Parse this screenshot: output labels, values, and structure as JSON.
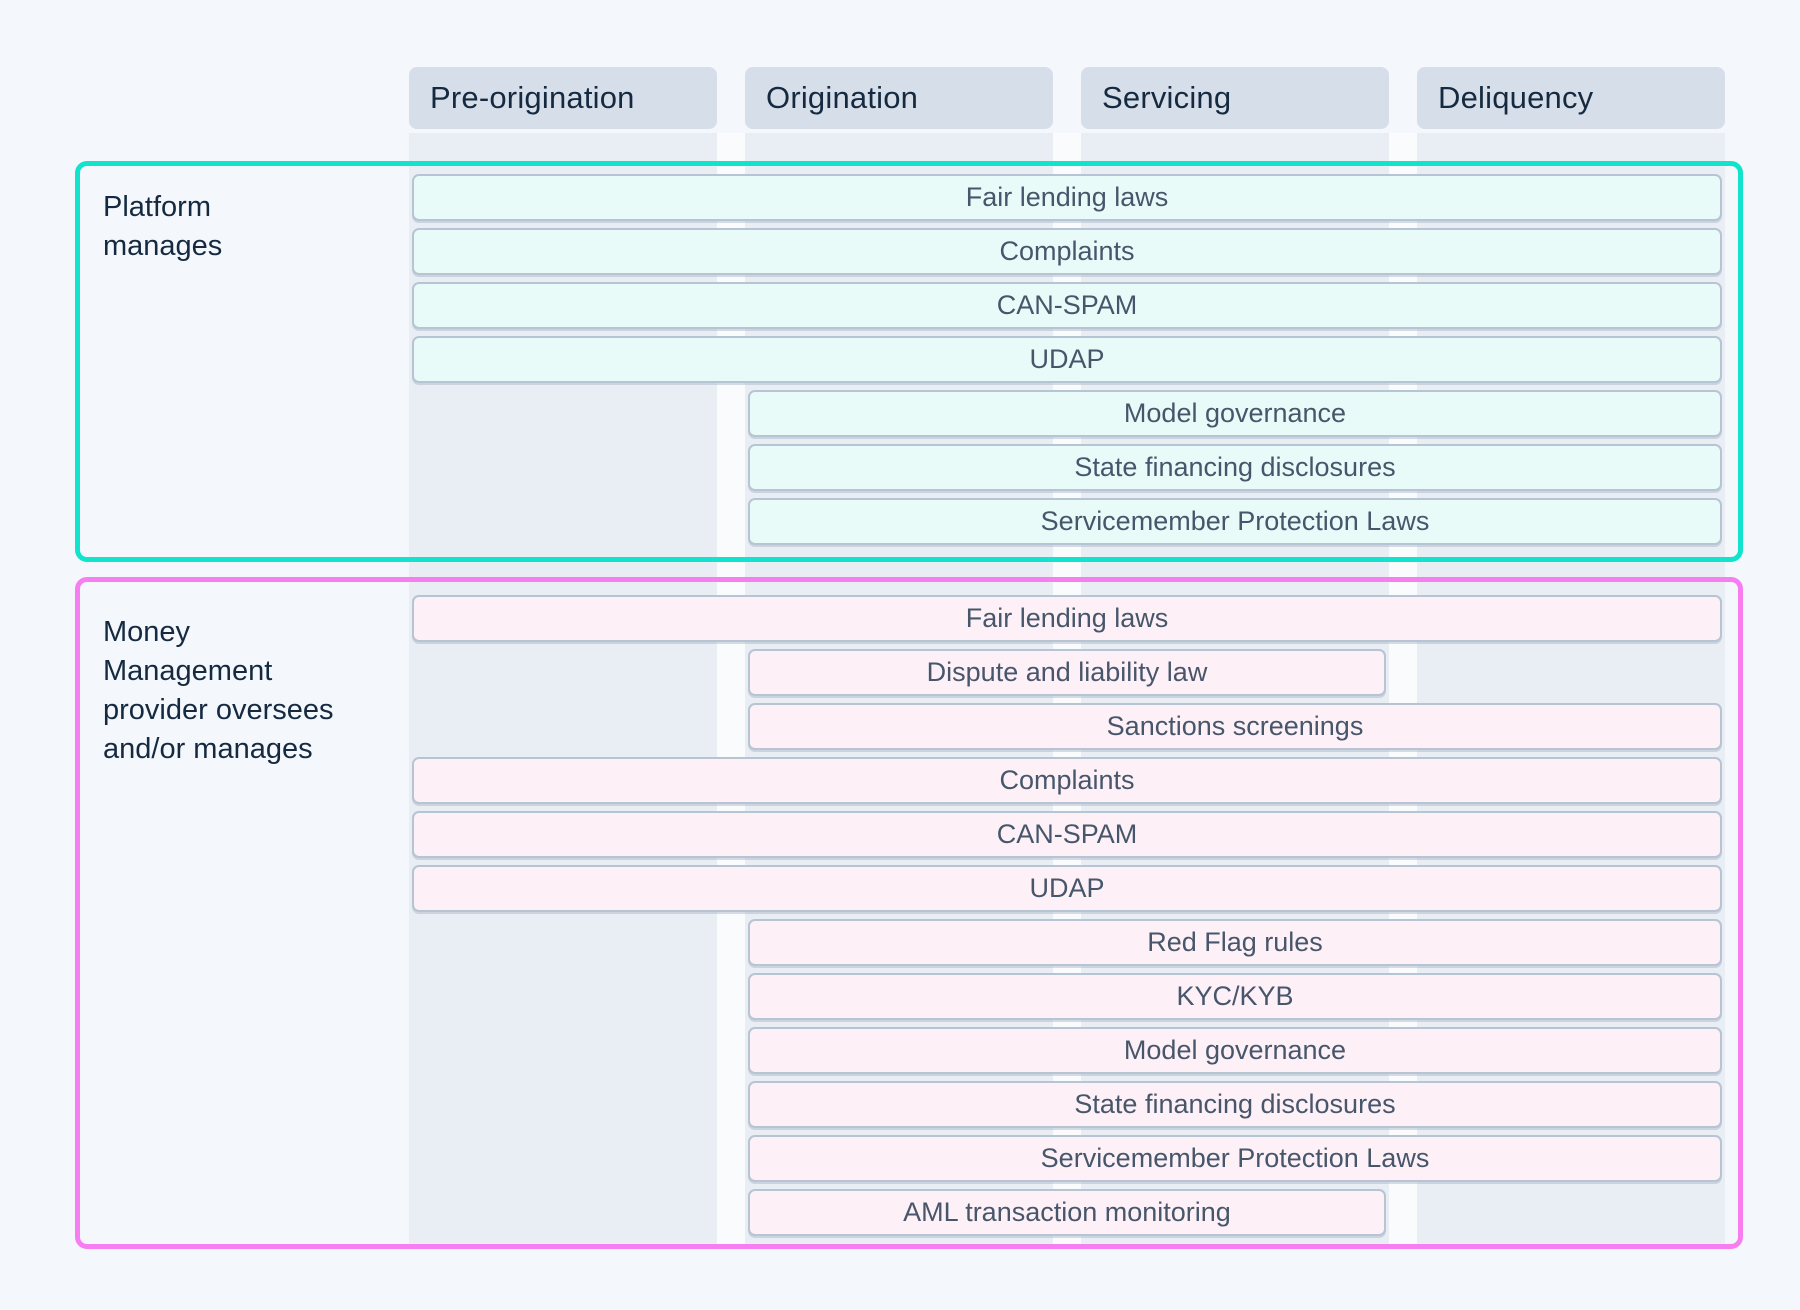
{
  "page": {
    "background": "#f4f7fb"
  },
  "columns": [
    {
      "id": "pre-origination",
      "label": "Pre-origination"
    },
    {
      "id": "origination",
      "label": "Origination"
    },
    {
      "id": "servicing",
      "label": "Servicing"
    },
    {
      "id": "deliquency",
      "label": "Deliquency"
    }
  ],
  "sections": [
    {
      "id": "platform-manages",
      "label": "Platform\nmanages",
      "accent_color": "#12e3cc",
      "bar_fill": "#e8fbf9",
      "rows": [
        {
          "label": "Fair lending laws",
          "span": [
            0,
            3
          ]
        },
        {
          "label": "Complaints",
          "span": [
            0,
            3
          ]
        },
        {
          "label": "CAN-SPAM",
          "span": [
            0,
            3
          ]
        },
        {
          "label": "UDAP",
          "span": [
            0,
            3
          ]
        },
        {
          "label": "Model governance",
          "span": [
            1,
            3
          ]
        },
        {
          "label": "State financing disclosures",
          "span": [
            1,
            3
          ]
        },
        {
          "label": "Servicemember Protection Laws",
          "span": [
            1,
            3
          ]
        }
      ]
    },
    {
      "id": "money-management-provider",
      "label": "Money\nManagement\nprovider oversees\nand/or manages",
      "accent_color": "#f77ef1",
      "bar_fill": "#fdf1f7",
      "rows": [
        {
          "label": "Fair lending laws",
          "span": [
            0,
            3
          ]
        },
        {
          "label": "Dispute and liability law",
          "span": [
            1,
            2
          ]
        },
        {
          "label": "Sanctions screenings",
          "span": [
            1,
            3
          ]
        },
        {
          "label": "Complaints",
          "span": [
            0,
            3
          ]
        },
        {
          "label": "CAN-SPAM",
          "span": [
            0,
            3
          ]
        },
        {
          "label": "UDAP",
          "span": [
            0,
            3
          ]
        },
        {
          "label": "Red Flag rules",
          "span": [
            1,
            3
          ]
        },
        {
          "label": "KYC/KYB",
          "span": [
            1,
            3
          ]
        },
        {
          "label": "Model governance",
          "span": [
            1,
            3
          ]
        },
        {
          "label": "State financing disclosures",
          "span": [
            1,
            3
          ]
        },
        {
          "label": "Servicemember Protection Laws",
          "span": [
            1,
            3
          ]
        },
        {
          "label": "AML transaction monitoring",
          "span": [
            1,
            2
          ]
        }
      ]
    }
  ]
}
